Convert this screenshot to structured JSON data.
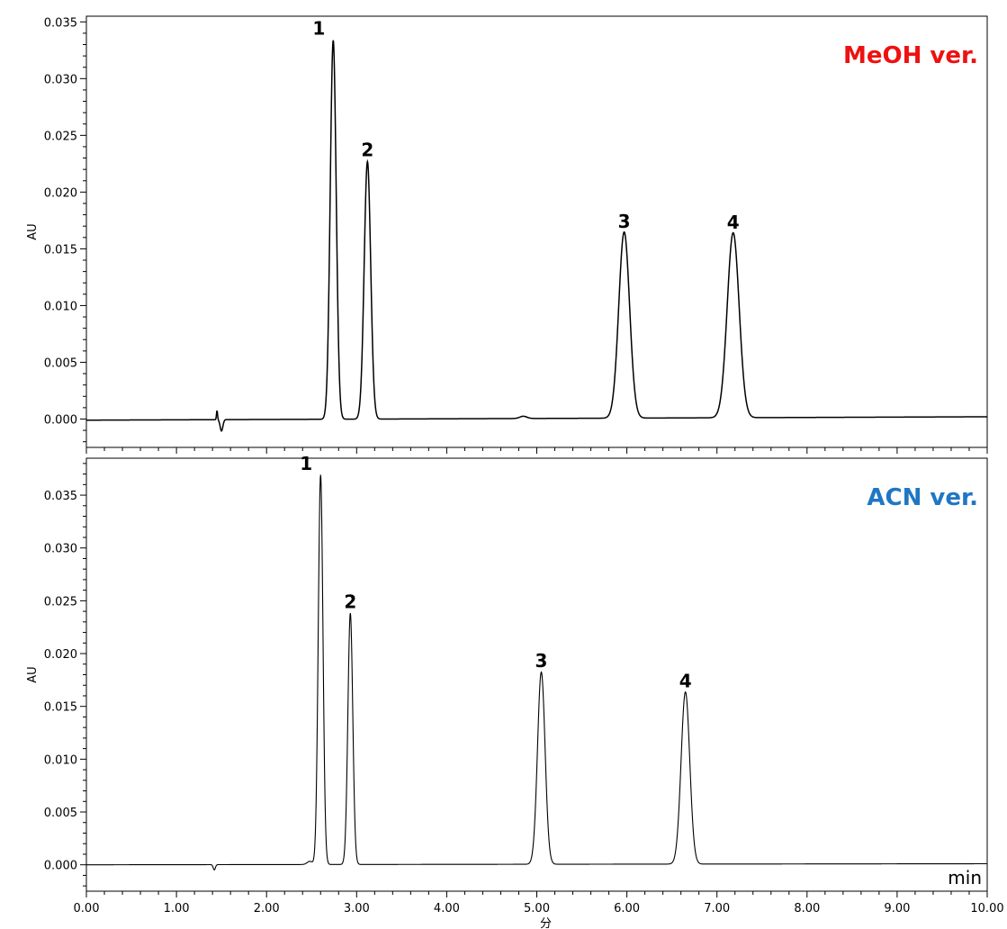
{
  "chart_data": [
    {
      "type": "line",
      "title": "MeOH ver.",
      "title_color": "#ee1111",
      "ylabel": "AU",
      "ylim": [
        -0.0025,
        0.0355
      ],
      "yticks": [
        0.0,
        0.005,
        0.01,
        0.015,
        0.02,
        0.025,
        0.03,
        0.035
      ],
      "ytick_labels": [
        "0.000",
        "0.005",
        "0.010",
        "0.015",
        "0.020",
        "0.025",
        "0.030",
        "0.035"
      ],
      "xlim": [
        0,
        10
      ],
      "line_color": "#000000",
      "peaks": [
        {
          "label": "1",
          "x": 2.74,
          "y": 0.0334,
          "sigma": 0.033
        },
        {
          "label": "2",
          "x": 3.12,
          "y": 0.0227,
          "sigma": 0.036
        },
        {
          "label": "3",
          "x": 5.97,
          "y": 0.0164,
          "sigma": 0.06
        },
        {
          "label": "4",
          "x": 7.18,
          "y": 0.0163,
          "sigma": 0.066
        }
      ],
      "disturbances": [
        {
          "x": 1.45,
          "y": 0.0008,
          "sigma": 0.006
        },
        {
          "x": 1.5,
          "y": -0.001,
          "sigma": 0.015
        },
        {
          "x": 4.85,
          "y": 0.0002,
          "sigma": 0.04
        }
      ],
      "baseline": {
        "start": -0.0001,
        "end": 0.0002
      }
    },
    {
      "type": "line",
      "title": "ACN ver.",
      "title_color": "#1f77c4",
      "ylabel": "AU",
      "ylim": [
        -0.0025,
        0.0385
      ],
      "yticks": [
        0.0,
        0.005,
        0.01,
        0.015,
        0.02,
        0.025,
        0.03,
        0.035
      ],
      "ytick_labels": [
        "0.000",
        "0.005",
        "0.010",
        "0.015",
        "0.020",
        "0.025",
        "0.030",
        "0.035"
      ],
      "xlim": [
        0,
        10
      ],
      "xticks": [
        0,
        1,
        2,
        3,
        4,
        5,
        6,
        7,
        8,
        9,
        10
      ],
      "xtick_labels": [
        "0.00",
        "1.00",
        "2.00",
        "3.00",
        "4.00",
        "5.00",
        "6.00",
        "7.00",
        "8.00",
        "9.00",
        "10.00"
      ],
      "xlabel": "分",
      "unit_label": "min",
      "line_color": "#000000",
      "peaks": [
        {
          "label": "1",
          "x": 2.6,
          "y": 0.0369,
          "sigma": 0.026
        },
        {
          "label": "2",
          "x": 2.93,
          "y": 0.0238,
          "sigma": 0.027
        },
        {
          "label": "3",
          "x": 5.05,
          "y": 0.0182,
          "sigma": 0.042
        },
        {
          "label": "4",
          "x": 6.65,
          "y": 0.0163,
          "sigma": 0.048
        }
      ],
      "disturbances": [
        {
          "x": 1.42,
          "y": -0.0005,
          "sigma": 0.012
        },
        {
          "x": 2.48,
          "y": 0.0003,
          "sigma": 0.03
        }
      ],
      "baseline": {
        "start": 0.0,
        "end": 0.0001
      }
    }
  ]
}
